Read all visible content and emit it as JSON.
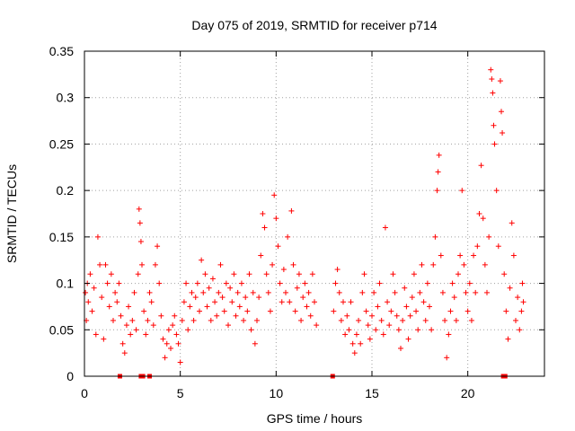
{
  "chart_data": {
    "type": "scatter",
    "title": "Day 075 of 2019, SRMTID for receiver p714",
    "xlabel": "GPS time / hours",
    "ylabel": "SRMTID / TECUs",
    "xlim": [
      0,
      24
    ],
    "ylim": [
      0,
      0.35
    ],
    "xticks": [
      0,
      5,
      10,
      15,
      20
    ],
    "xtick_labels": [
      "0",
      "5",
      "10",
      "15",
      "20"
    ],
    "yticks": [
      0,
      0.05,
      0.1,
      0.15,
      0.2,
      0.25,
      0.3,
      0.35
    ],
    "ytick_labels": [
      "0",
      "0.05",
      "0.1",
      "0.15",
      "0.2",
      "0.25",
      "0.3",
      "0.35"
    ],
    "grid": true,
    "marker": "plus",
    "color": "#ff0000",
    "series": [
      {
        "name": "SRMTID",
        "points": [
          [
            0.05,
            0.09
          ],
          [
            0.1,
            0.06
          ],
          [
            0.15,
            0.1
          ],
          [
            0.2,
            0.08
          ],
          [
            0.3,
            0.11
          ],
          [
            0.4,
            0.07
          ],
          [
            0.5,
            0.095
          ],
          [
            0.6,
            0.045
          ],
          [
            0.7,
            0.15
          ],
          [
            0.8,
            0.12
          ],
          [
            0.9,
            0.085
          ],
          [
            1.0,
            0.04
          ],
          [
            1.1,
            0.12
          ],
          [
            1.2,
            0.1
          ],
          [
            1.3,
            0.075
          ],
          [
            1.4,
            0.11
          ],
          [
            1.5,
            0.06
          ],
          [
            1.6,
            0.09
          ],
          [
            1.7,
            0.08
          ],
          [
            1.8,
            0.1
          ],
          [
            1.9,
            0.065
          ],
          [
            2.0,
            0.035
          ],
          [
            2.1,
            0.025
          ],
          [
            2.2,
            0.055
          ],
          [
            2.3,
            0.075
          ],
          [
            2.4,
            0.045
          ],
          [
            2.5,
            0.06
          ],
          [
            2.6,
            0.09
          ],
          [
            2.7,
            0.05
          ],
          [
            2.8,
            0.11
          ],
          [
            2.85,
            0.18
          ],
          [
            2.9,
            0.165
          ],
          [
            2.95,
            0.145
          ],
          [
            3.0,
            0.12
          ],
          [
            3.1,
            0.07
          ],
          [
            3.2,
            0.045
          ],
          [
            3.3,
            0.06
          ],
          [
            3.4,
            0.09
          ],
          [
            3.5,
            0.08
          ],
          [
            3.6,
            0.055
          ],
          [
            3.7,
            0.12
          ],
          [
            3.8,
            0.14
          ],
          [
            3.9,
            0.1
          ],
          [
            4.0,
            0.065
          ],
          [
            4.1,
            0.04
          ],
          [
            4.2,
            0.02
          ],
          [
            4.3,
            0.035
          ],
          [
            4.4,
            0.05
          ],
          [
            4.5,
            0.03
          ],
          [
            4.6,
            0.055
          ],
          [
            4.7,
            0.065
          ],
          [
            4.8,
            0.045
          ],
          [
            4.9,
            0.035
          ],
          [
            5.0,
            0.015
          ],
          [
            5.1,
            0.06
          ],
          [
            5.2,
            0.08
          ],
          [
            5.3,
            0.1
          ],
          [
            5.4,
            0.05
          ],
          [
            5.5,
            0.075
          ],
          [
            5.6,
            0.09
          ],
          [
            5.7,
            0.06
          ],
          [
            5.8,
            0.085
          ],
          [
            5.9,
            0.1
          ],
          [
            6.0,
            0.07
          ],
          [
            6.1,
            0.125
          ],
          [
            6.2,
            0.09
          ],
          [
            6.3,
            0.11
          ],
          [
            6.4,
            0.075
          ],
          [
            6.5,
            0.095
          ],
          [
            6.6,
            0.06
          ],
          [
            6.7,
            0.105
          ],
          [
            6.8,
            0.08
          ],
          [
            6.9,
            0.065
          ],
          [
            7.0,
            0.09
          ],
          [
            7.1,
            0.12
          ],
          [
            7.2,
            0.085
          ],
          [
            7.3,
            0.07
          ],
          [
            7.4,
            0.1
          ],
          [
            7.5,
            0.055
          ],
          [
            7.6,
            0.095
          ],
          [
            7.7,
            0.08
          ],
          [
            7.8,
            0.11
          ],
          [
            7.9,
            0.065
          ],
          [
            8.0,
            0.09
          ],
          [
            8.1,
            0.075
          ],
          [
            8.2,
            0.1
          ],
          [
            8.3,
            0.06
          ],
          [
            8.4,
            0.085
          ],
          [
            8.5,
            0.07
          ],
          [
            8.6,
            0.11
          ],
          [
            8.7,
            0.05
          ],
          [
            8.8,
            0.09
          ],
          [
            8.9,
            0.035
          ],
          [
            9.0,
            0.06
          ],
          [
            9.1,
            0.085
          ],
          [
            9.2,
            0.13
          ],
          [
            9.3,
            0.175
          ],
          [
            9.4,
            0.16
          ],
          [
            9.5,
            0.11
          ],
          [
            9.6,
            0.09
          ],
          [
            9.7,
            0.07
          ],
          [
            9.8,
            0.12
          ],
          [
            9.9,
            0.195
          ],
          [
            10.0,
            0.17
          ],
          [
            10.1,
            0.14
          ],
          [
            10.2,
            0.1
          ],
          [
            10.3,
            0.08
          ],
          [
            10.4,
            0.115
          ],
          [
            10.5,
            0.09
          ],
          [
            10.6,
            0.15
          ],
          [
            10.7,
            0.08
          ],
          [
            10.8,
            0.178
          ],
          [
            10.9,
            0.12
          ],
          [
            11.0,
            0.07
          ],
          [
            11.1,
            0.095
          ],
          [
            11.2,
            0.11
          ],
          [
            11.3,
            0.06
          ],
          [
            11.4,
            0.085
          ],
          [
            11.5,
            0.1
          ],
          [
            11.6,
            0.075
          ],
          [
            11.7,
            0.09
          ],
          [
            11.8,
            0.065
          ],
          [
            11.9,
            0.11
          ],
          [
            12.0,
            0.08
          ],
          [
            12.1,
            0.055
          ],
          [
            13.0,
            0.07
          ],
          [
            13.1,
            0.1
          ],
          [
            13.2,
            0.115
          ],
          [
            13.3,
            0.09
          ],
          [
            13.4,
            0.06
          ],
          [
            13.5,
            0.08
          ],
          [
            13.6,
            0.045
          ],
          [
            13.7,
            0.065
          ],
          [
            13.8,
            0.05
          ],
          [
            13.9,
            0.08
          ],
          [
            14.0,
            0.035
          ],
          [
            14.1,
            0.025
          ],
          [
            14.2,
            0.045
          ],
          [
            14.3,
            0.06
          ],
          [
            14.4,
            0.035
          ],
          [
            14.5,
            0.09
          ],
          [
            14.6,
            0.11
          ],
          [
            14.7,
            0.07
          ],
          [
            14.8,
            0.055
          ],
          [
            14.9,
            0.04
          ],
          [
            15.0,
            0.065
          ],
          [
            15.1,
            0.09
          ],
          [
            15.2,
            0.05
          ],
          [
            15.3,
            0.075
          ],
          [
            15.4,
            0.1
          ],
          [
            15.5,
            0.06
          ],
          [
            15.6,
            0.045
          ],
          [
            15.7,
            0.16
          ],
          [
            15.8,
            0.08
          ],
          [
            15.9,
            0.055
          ],
          [
            16.0,
            0.07
          ],
          [
            16.1,
            0.11
          ],
          [
            16.2,
            0.09
          ],
          [
            16.3,
            0.065
          ],
          [
            16.4,
            0.05
          ],
          [
            16.5,
            0.03
          ],
          [
            16.6,
            0.06
          ],
          [
            16.7,
            0.095
          ],
          [
            16.8,
            0.075
          ],
          [
            16.9,
            0.04
          ],
          [
            17.0,
            0.065
          ],
          [
            17.1,
            0.085
          ],
          [
            17.2,
            0.11
          ],
          [
            17.3,
            0.07
          ],
          [
            17.4,
            0.05
          ],
          [
            17.5,
            0.09
          ],
          [
            17.6,
            0.12
          ],
          [
            17.7,
            0.08
          ],
          [
            17.8,
            0.06
          ],
          [
            17.9,
            0.1
          ],
          [
            18.0,
            0.075
          ],
          [
            18.1,
            0.05
          ],
          [
            18.2,
            0.12
          ],
          [
            18.3,
            0.15
          ],
          [
            18.4,
            0.2
          ],
          [
            18.45,
            0.22
          ],
          [
            18.5,
            0.238
          ],
          [
            18.6,
            0.13
          ],
          [
            18.7,
            0.09
          ],
          [
            18.8,
            0.06
          ],
          [
            18.9,
            0.02
          ],
          [
            19.0,
            0.045
          ],
          [
            19.1,
            0.07
          ],
          [
            19.2,
            0.1
          ],
          [
            19.3,
            0.085
          ],
          [
            19.4,
            0.06
          ],
          [
            19.5,
            0.11
          ],
          [
            19.6,
            0.13
          ],
          [
            19.7,
            0.2
          ],
          [
            19.8,
            0.12
          ],
          [
            19.9,
            0.09
          ],
          [
            20.0,
            0.07
          ],
          [
            20.1,
            0.1
          ],
          [
            20.2,
            0.06
          ],
          [
            20.3,
            0.13
          ],
          [
            20.4,
            0.09
          ],
          [
            20.5,
            0.14
          ],
          [
            20.6,
            0.175
          ],
          [
            20.7,
            0.227
          ],
          [
            20.8,
            0.17
          ],
          [
            20.9,
            0.12
          ],
          [
            21.0,
            0.09
          ],
          [
            21.1,
            0.15
          ],
          [
            21.2,
            0.33
          ],
          [
            21.25,
            0.32
          ],
          [
            21.3,
            0.305
          ],
          [
            21.35,
            0.27
          ],
          [
            21.4,
            0.25
          ],
          [
            21.5,
            0.2
          ],
          [
            21.6,
            0.14
          ],
          [
            21.7,
            0.318
          ],
          [
            21.75,
            0.285
          ],
          [
            21.8,
            0.262
          ],
          [
            21.9,
            0.11
          ],
          [
            22.0,
            0.07
          ],
          [
            22.1,
            0.04
          ],
          [
            22.2,
            0.095
          ],
          [
            22.3,
            0.165
          ],
          [
            22.4,
            0.13
          ],
          [
            22.5,
            0.06
          ],
          [
            22.6,
            0.085
          ],
          [
            22.7,
            0.05
          ],
          [
            22.8,
            0.07
          ],
          [
            22.85,
            0.1
          ],
          [
            22.9,
            0.08
          ],
          [
            1.85,
            0
          ],
          [
            2.95,
            0
          ],
          [
            3.05,
            0
          ],
          [
            3.4,
            0
          ],
          [
            12.95,
            0
          ],
          [
            21.85,
            0
          ],
          [
            21.95,
            0
          ]
        ]
      }
    ]
  }
}
